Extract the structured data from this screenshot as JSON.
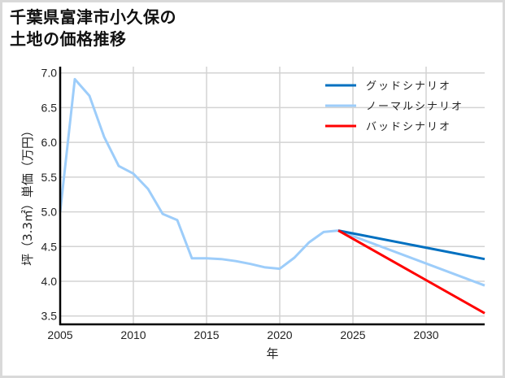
{
  "title": {
    "line1": "千葉県富津市小久保の",
    "line2": "土地の価格推移"
  },
  "chart_data": {
    "type": "line",
    "title": "千葉県富津市小久保の土地の価格推移",
    "xlabel": "年",
    "ylabel": "坪（3.3㎡）単価（万円）",
    "xlim": [
      2005,
      2034
    ],
    "ylim": [
      3.38,
      7.09
    ],
    "x_ticks": [
      2005,
      2010,
      2015,
      2020,
      2025,
      2030
    ],
    "y_ticks": [
      3.5,
      4.0,
      4.5,
      5.0,
      5.5,
      6.0,
      6.5,
      7.0
    ],
    "y_tick_labels": [
      "3.5",
      "4.0",
      "4.5",
      "5.0",
      "5.5",
      "6.0",
      "6.5",
      "7.0"
    ],
    "grid": true,
    "legend_position": "upper right",
    "series": [
      {
        "name": "グッドシナリオ",
        "color": "#0070c0",
        "x": [
          2024,
          2034
        ],
        "values": [
          4.73,
          4.32
        ]
      },
      {
        "name": "ノーマルシナリオ",
        "color": "#9dcdfa",
        "x": [
          2005,
          2006,
          2007,
          2008,
          2009,
          2010,
          2011,
          2012,
          2013,
          2014,
          2015,
          2016,
          2017,
          2018,
          2019,
          2020,
          2021,
          2022,
          2023,
          2024,
          2034
        ],
        "values": [
          5.0,
          6.91,
          6.67,
          6.08,
          5.66,
          5.55,
          5.33,
          4.97,
          4.88,
          4.33,
          4.33,
          4.32,
          4.29,
          4.25,
          4.2,
          4.18,
          4.34,
          4.56,
          4.71,
          4.73,
          3.94
        ]
      },
      {
        "name": "バッドシナリオ",
        "color": "#ff0000",
        "x": [
          2024,
          2034
        ],
        "values": [
          4.73,
          3.54
        ]
      }
    ]
  },
  "colors": {
    "grid": "#d3d3d3",
    "axis": "#000000",
    "frame": "#d9d9d9"
  }
}
